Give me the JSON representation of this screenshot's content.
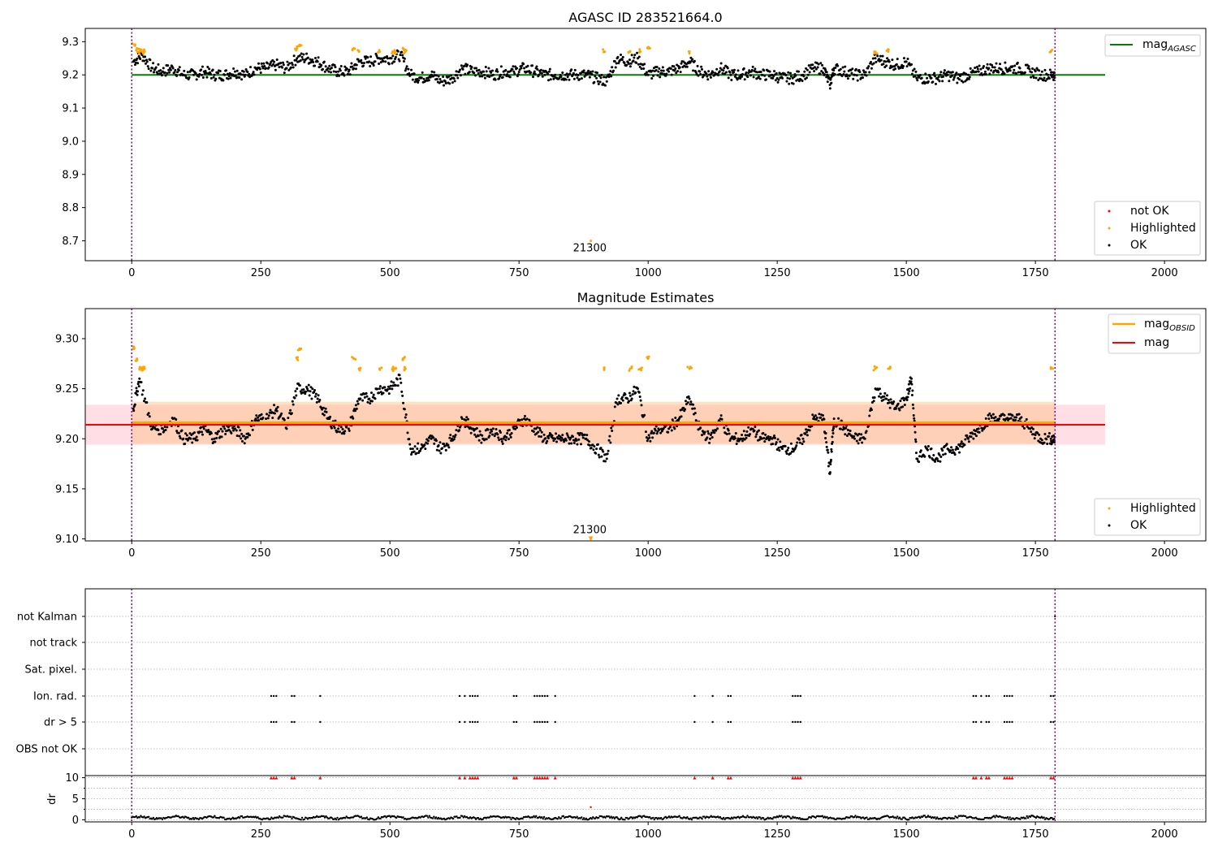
{
  "figure": {
    "colors": {
      "ok": "#000000",
      "highlighted": "#ffa500",
      "not_ok": "#ff0000",
      "mag_agasc": "#008000",
      "mag_obsid": "#ffa500",
      "mag": "#ff0000",
      "obs_boundary": "#800080",
      "band_mag": "#ffc0cb",
      "band_obsid": "#ffbf80",
      "grid": "#b0b0b0"
    }
  },
  "chart_data": [
    {
      "type": "scatter",
      "title": "AGASC ID 283521664.0",
      "xlabel": "",
      "ylabel": "",
      "xlim": [
        -90,
        2080
      ],
      "ylim": [
        8.64,
        9.34
      ],
      "x_ticks": [
        0,
        250,
        500,
        750,
        1000,
        1250,
        1500,
        1750,
        2000
      ],
      "y_ticks": [
        8.7,
        8.8,
        8.9,
        9.0,
        9.1,
        9.2,
        9.3
      ],
      "y_tick_labels": [
        "8.7",
        "8.8",
        "8.9",
        "9.0",
        "9.1",
        "9.2",
        "9.3"
      ],
      "legend_lines": {
        "position": "upper right",
        "entries": [
          "mag_AGASC"
        ]
      },
      "legend_points": {
        "position": "lower right",
        "entries": [
          "not OK",
          "Highlighted",
          "OK"
        ]
      },
      "mag_agasc_line": {
        "y": 9.2,
        "x_range": [
          0,
          1885
        ]
      },
      "obs_boundaries": [
        0,
        1788
      ],
      "annotation": {
        "text": "21300",
        "x": 887,
        "y": 8.68
      },
      "series_ok": [
        [
          3,
          9.24
        ],
        [
          20,
          9.26
        ],
        [
          40,
          9.22
        ],
        [
          60,
          9.21
        ],
        [
          80,
          9.22
        ],
        [
          100,
          9.2
        ],
        [
          120,
          9.2
        ],
        [
          140,
          9.21
        ],
        [
          160,
          9.2
        ],
        [
          180,
          9.2
        ],
        [
          200,
          9.21
        ],
        [
          220,
          9.2
        ],
        [
          240,
          9.22
        ],
        [
          260,
          9.22
        ],
        [
          280,
          9.23
        ],
        [
          300,
          9.22
        ],
        [
          320,
          9.25
        ],
        [
          340,
          9.25
        ],
        [
          360,
          9.24
        ],
        [
          380,
          9.22
        ],
        [
          400,
          9.21
        ],
        [
          420,
          9.21
        ],
        [
          440,
          9.24
        ],
        [
          460,
          9.24
        ],
        [
          480,
          9.25
        ],
        [
          500,
          9.25
        ],
        [
          520,
          9.26
        ],
        [
          540,
          9.2
        ],
        [
          560,
          9.19
        ],
        [
          580,
          9.2
        ],
        [
          600,
          9.18
        ],
        [
          620,
          9.19
        ],
        [
          640,
          9.22
        ],
        [
          660,
          9.21
        ],
        [
          680,
          9.21
        ],
        [
          700,
          9.2
        ],
        [
          720,
          9.21
        ],
        [
          740,
          9.21
        ],
        [
          760,
          9.22
        ],
        [
          780,
          9.21
        ],
        [
          800,
          9.2
        ],
        [
          820,
          9.2
        ],
        [
          840,
          9.2
        ],
        [
          860,
          9.2
        ],
        [
          880,
          9.2
        ],
        [
          900,
          9.19
        ],
        [
          920,
          9.18
        ],
        [
          940,
          9.25
        ],
        [
          960,
          9.24
        ],
        [
          980,
          9.25
        ],
        [
          1000,
          9.2
        ],
        [
          1020,
          9.21
        ],
        [
          1040,
          9.21
        ],
        [
          1060,
          9.22
        ],
        [
          1080,
          9.24
        ],
        [
          1100,
          9.21
        ],
        [
          1120,
          9.2
        ],
        [
          1140,
          9.22
        ],
        [
          1160,
          9.2
        ],
        [
          1180,
          9.2
        ],
        [
          1200,
          9.21
        ],
        [
          1220,
          9.2
        ],
        [
          1240,
          9.2
        ],
        [
          1260,
          9.19
        ],
        [
          1280,
          9.19
        ],
        [
          1300,
          9.2
        ],
        [
          1320,
          9.22
        ],
        [
          1340,
          9.22
        ],
        [
          1352,
          9.17
        ],
        [
          1360,
          9.22
        ],
        [
          1380,
          9.21
        ],
        [
          1400,
          9.2
        ],
        [
          1420,
          9.2
        ],
        [
          1440,
          9.25
        ],
        [
          1460,
          9.24
        ],
        [
          1480,
          9.23
        ],
        [
          1500,
          9.24
        ],
        [
          1520,
          9.19
        ],
        [
          1540,
          9.19
        ],
        [
          1560,
          9.19
        ],
        [
          1580,
          9.2
        ],
        [
          1600,
          9.19
        ],
        [
          1620,
          9.2
        ],
        [
          1640,
          9.21
        ],
        [
          1660,
          9.22
        ],
        [
          1680,
          9.22
        ],
        [
          1700,
          9.22
        ],
        [
          1720,
          9.22
        ],
        [
          1740,
          9.21
        ],
        [
          1760,
          9.2
        ],
        [
          1780,
          9.2
        ]
      ],
      "series_highlighted": [
        [
          5,
          9.29
        ],
        [
          10,
          9.28
        ],
        [
          15,
          9.27
        ],
        [
          20,
          9.27
        ],
        [
          25,
          9.27
        ],
        [
          320,
          9.28
        ],
        [
          325,
          9.29
        ],
        [
          430,
          9.28
        ],
        [
          440,
          9.27
        ],
        [
          480,
          9.27
        ],
        [
          505,
          9.27
        ],
        [
          510,
          9.27
        ],
        [
          525,
          9.28
        ],
        [
          530,
          9.27
        ],
        [
          915,
          9.27
        ],
        [
          965,
          9.27
        ],
        [
          985,
          9.27
        ],
        [
          1000,
          9.28
        ],
        [
          1080,
          9.27
        ],
        [
          1440,
          9.27
        ],
        [
          1465,
          9.27
        ],
        [
          1780,
          9.27
        ],
        [
          889,
          8.7
        ]
      ],
      "series_not_ok": []
    },
    {
      "type": "scatter",
      "title": "Magnitude Estimates",
      "xlabel": "",
      "ylabel": "",
      "xlim": [
        -90,
        2080
      ],
      "ylim": [
        9.098,
        9.33
      ],
      "x_ticks": [
        0,
        250,
        500,
        750,
        1000,
        1250,
        1500,
        1750,
        2000
      ],
      "y_ticks": [
        9.1,
        9.15,
        9.2,
        9.25,
        9.3
      ],
      "y_tick_labels": [
        "9.10",
        "9.15",
        "9.20",
        "9.25",
        "9.30"
      ],
      "legend_lines": {
        "position": "upper right",
        "entries": [
          "mag_OBSID",
          "mag"
        ]
      },
      "legend_points": {
        "position": "lower right",
        "entries": [
          "Highlighted",
          "OK"
        ]
      },
      "mag_line": {
        "y": 9.214,
        "x_range": [
          -90,
          1885
        ],
        "band": [
          9.194,
          9.234
        ]
      },
      "mag_obsid_line": {
        "y": 9.216,
        "x_range": [
          0,
          1788
        ],
        "band": [
          9.195,
          9.237
        ]
      },
      "obs_boundaries": [
        0,
        1788
      ],
      "annotation": {
        "text": "21300",
        "x": 887,
        "y": 9.1
      },
      "series_ok": [
        [
          3,
          9.23
        ],
        [
          15,
          9.26
        ],
        [
          40,
          9.21
        ],
        [
          60,
          9.21
        ],
        [
          80,
          9.22
        ],
        [
          100,
          9.2
        ],
        [
          120,
          9.2
        ],
        [
          140,
          9.21
        ],
        [
          160,
          9.2
        ],
        [
          180,
          9.21
        ],
        [
          200,
          9.21
        ],
        [
          220,
          9.2
        ],
        [
          240,
          9.22
        ],
        [
          260,
          9.22
        ],
        [
          280,
          9.23
        ],
        [
          300,
          9.21
        ],
        [
          320,
          9.25
        ],
        [
          340,
          9.25
        ],
        [
          360,
          9.24
        ],
        [
          380,
          9.22
        ],
        [
          400,
          9.21
        ],
        [
          420,
          9.21
        ],
        [
          440,
          9.24
        ],
        [
          460,
          9.24
        ],
        [
          480,
          9.25
        ],
        [
          500,
          9.25
        ],
        [
          520,
          9.26
        ],
        [
          540,
          9.19
        ],
        [
          560,
          9.19
        ],
        [
          580,
          9.2
        ],
        [
          600,
          9.19
        ],
        [
          620,
          9.2
        ],
        [
          640,
          9.22
        ],
        [
          660,
          9.21
        ],
        [
          680,
          9.2
        ],
        [
          700,
          9.21
        ],
        [
          720,
          9.2
        ],
        [
          740,
          9.21
        ],
        [
          760,
          9.22
        ],
        [
          780,
          9.21
        ],
        [
          800,
          9.2
        ],
        [
          820,
          9.2
        ],
        [
          840,
          9.2
        ],
        [
          860,
          9.2
        ],
        [
          880,
          9.2
        ],
        [
          900,
          9.19
        ],
        [
          920,
          9.18
        ],
        [
          940,
          9.24
        ],
        [
          960,
          9.24
        ],
        [
          980,
          9.25
        ],
        [
          1000,
          9.2
        ],
        [
          1020,
          9.21
        ],
        [
          1040,
          9.21
        ],
        [
          1060,
          9.22
        ],
        [
          1080,
          9.24
        ],
        [
          1100,
          9.21
        ],
        [
          1120,
          9.2
        ],
        [
          1140,
          9.22
        ],
        [
          1160,
          9.2
        ],
        [
          1180,
          9.2
        ],
        [
          1200,
          9.21
        ],
        [
          1220,
          9.2
        ],
        [
          1240,
          9.2
        ],
        [
          1260,
          9.19
        ],
        [
          1280,
          9.19
        ],
        [
          1300,
          9.2
        ],
        [
          1320,
          9.22
        ],
        [
          1340,
          9.22
        ],
        [
          1352,
          9.165
        ],
        [
          1360,
          9.22
        ],
        [
          1380,
          9.21
        ],
        [
          1400,
          9.2
        ],
        [
          1420,
          9.2
        ],
        [
          1440,
          9.25
        ],
        [
          1460,
          9.24
        ],
        [
          1480,
          9.23
        ],
        [
          1500,
          9.24
        ],
        [
          1510,
          9.26
        ],
        [
          1520,
          9.18
        ],
        [
          1540,
          9.19
        ],
        [
          1560,
          9.18
        ],
        [
          1580,
          9.19
        ],
        [
          1600,
          9.19
        ],
        [
          1620,
          9.2
        ],
        [
          1640,
          9.21
        ],
        [
          1660,
          9.22
        ],
        [
          1680,
          9.22
        ],
        [
          1700,
          9.22
        ],
        [
          1720,
          9.22
        ],
        [
          1740,
          9.21
        ],
        [
          1760,
          9.2
        ],
        [
          1780,
          9.2
        ]
      ],
      "series_highlighted": [
        [
          5,
          9.29
        ],
        [
          10,
          9.28
        ],
        [
          15,
          9.27
        ],
        [
          20,
          9.27
        ],
        [
          25,
          9.27
        ],
        [
          320,
          9.28
        ],
        [
          325,
          9.29
        ],
        [
          430,
          9.28
        ],
        [
          440,
          9.27
        ],
        [
          480,
          9.27
        ],
        [
          505,
          9.27
        ],
        [
          510,
          9.27
        ],
        [
          525,
          9.28
        ],
        [
          530,
          9.27
        ],
        [
          915,
          9.27
        ],
        [
          965,
          9.27
        ],
        [
          985,
          9.27
        ],
        [
          1000,
          9.28
        ],
        [
          1080,
          9.27
        ],
        [
          1440,
          9.27
        ],
        [
          1465,
          9.27
        ],
        [
          1780,
          9.27
        ],
        [
          889,
          9.1
        ]
      ]
    },
    {
      "type": "scatter",
      "title": "",
      "xlabel": "",
      "ylabel": "",
      "xlim": [
        -90,
        2080
      ],
      "categories": [
        "not Kalman",
        "not track",
        "Sat. pixel.",
        "Ion. rad.",
        "dr > 5",
        "OBS not OK"
      ],
      "obs_boundaries": [
        0,
        1788
      ],
      "flag_positions": {
        "not Kalman": [
          1788
        ],
        "not track": [],
        "Sat. pixel.": [],
        "Ion. rad.": [
          270,
          275,
          280,
          310,
          315,
          365,
          635,
          645,
          655,
          660,
          665,
          670,
          740,
          745,
          780,
          785,
          790,
          795,
          800,
          805,
          820,
          1090,
          1125,
          1155,
          1160,
          1280,
          1285,
          1290,
          1295,
          1630,
          1635,
          1645,
          1655,
          1660,
          1690,
          1695,
          1700,
          1705,
          1780,
          1785
        ],
        "dr > 5": [
          270,
          275,
          280,
          310,
          315,
          365,
          635,
          645,
          655,
          660,
          665,
          670,
          740,
          745,
          780,
          785,
          790,
          795,
          800,
          805,
          820,
          1090,
          1125,
          1155,
          1160,
          1280,
          1285,
          1290,
          1295,
          1630,
          1635,
          1645,
          1655,
          1660,
          1690,
          1695,
          1700,
          1705,
          1780,
          1785
        ],
        "OBS not OK": []
      }
    },
    {
      "type": "scatter",
      "title": "",
      "xlabel": "",
      "ylabel": "dr",
      "xlim": [
        -90,
        2080
      ],
      "ylim": [
        -0.5,
        10.5
      ],
      "x_ticks": [
        0,
        250,
        500,
        750,
        1000,
        1250,
        1500,
        1750,
        2000
      ],
      "y_ticks": [
        0,
        5,
        10
      ],
      "y_tick_labels": [
        "0",
        "5",
        "10"
      ],
      "obs_boundaries": [
        0,
        1788
      ],
      "dr_ok_level": 0.5,
      "dr_clipped_value": 10,
      "dr_outlier": [
        889,
        3
      ],
      "dr_clipped_x": [
        270,
        275,
        280,
        310,
        315,
        365,
        635,
        645,
        655,
        660,
        665,
        670,
        740,
        745,
        780,
        785,
        790,
        795,
        800,
        805,
        820,
        1090,
        1125,
        1155,
        1160,
        1280,
        1285,
        1290,
        1295,
        1630,
        1635,
        1645,
        1655,
        1660,
        1690,
        1695,
        1700,
        1705,
        1780,
        1785
      ]
    }
  ]
}
